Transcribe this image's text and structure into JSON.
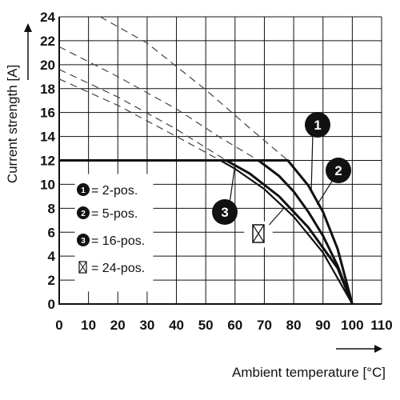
{
  "chart_data": {
    "type": "line",
    "xlabel": "Ambient temperature [°C]",
    "ylabel": "Current strength [A]",
    "xlim": [
      0,
      110
    ],
    "ylim": [
      0,
      24
    ],
    "xticks": [
      "0",
      "10",
      "20",
      "30",
      "40",
      "50",
      "60",
      "70",
      "80",
      "90",
      "100",
      "110"
    ],
    "yticks": [
      "0",
      "2",
      "4",
      "6",
      "8",
      "10",
      "12",
      "14",
      "16",
      "18",
      "20",
      "22",
      "24"
    ],
    "grid": true,
    "legend": {
      "placement": "middle-left",
      "entries": [
        {
          "marker": "1",
          "marker_style": "filled-circle",
          "label": "= 2-pos."
        },
        {
          "marker": "2",
          "marker_style": "filled-circle",
          "label": "= 5-pos."
        },
        {
          "marker": "3",
          "marker_style": "filled-circle",
          "label": "= 16-pos."
        },
        {
          "marker": "",
          "marker_style": "crossed-box",
          "label": "= 24-pos."
        }
      ]
    },
    "series": [
      {
        "marker": "1",
        "x": [
          0,
          78,
          85,
          90,
          95,
          100
        ],
        "y": [
          12,
          12,
          9.9,
          7.7,
          4.6,
          0
        ],
        "theoretical_x": [
          14,
          30,
          50,
          65,
          78
        ],
        "theoretical_y": [
          24,
          21.8,
          17.9,
          14.7,
          12
        ]
      },
      {
        "marker": "2",
        "x": [
          0,
          68,
          75,
          80,
          85,
          90,
          95,
          100
        ],
        "y": [
          12,
          12,
          10.7,
          9.4,
          7.7,
          5.7,
          3.2,
          0
        ],
        "theoretical_x": [
          0,
          20,
          40,
          55,
          68
        ],
        "theoretical_y": [
          21.5,
          19,
          16.3,
          13.9,
          12
        ]
      },
      {
        "marker": "3",
        "x": [
          0,
          57,
          65,
          75,
          85,
          95,
          100
        ],
        "y": [
          12,
          12,
          10.9,
          9.0,
          6.4,
          3.0,
          0
        ],
        "theoretical_x": [
          0,
          20,
          40,
          57
        ],
        "theoretical_y": [
          19.6,
          17.3,
          14.6,
          12
        ]
      },
      {
        "marker": "",
        "x": [
          0,
          55,
          60,
          70,
          80,
          90,
          100
        ],
        "y": [
          12,
          12,
          11.3,
          9.6,
          7.3,
          4.3,
          0
        ],
        "theoretical_x": [
          0,
          20,
          40,
          55
        ],
        "theoretical_y": [
          18.8,
          16.6,
          14.0,
          12
        ]
      }
    ],
    "colors": {
      "line": "#111111",
      "grid": "#111111",
      "dashed": "#444444"
    }
  }
}
